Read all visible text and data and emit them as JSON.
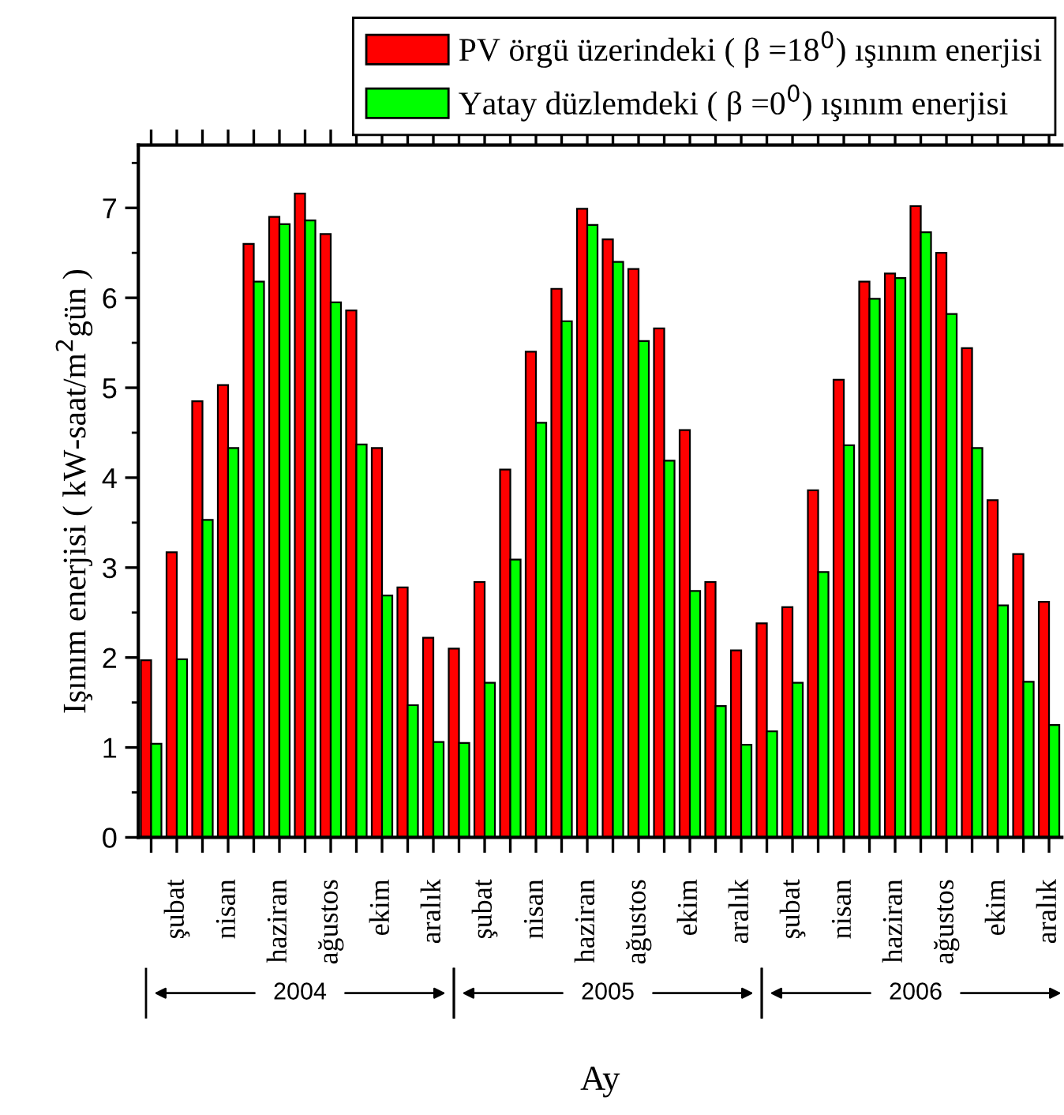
{
  "chart_data": {
    "type": "bar",
    "xlabel": "Ay",
    "ylabel": "Işınım enerjisi ( kW-saat/m$^{2}$gün )",
    "categories": [
      null,
      "şubat",
      null,
      "nisan",
      null,
      "haziran",
      null,
      "ağustos",
      null,
      "ekim",
      null,
      "aralık",
      null,
      "şubat",
      null,
      "nisan",
      null,
      "haziran",
      null,
      "ağustos",
      null,
      "ekim",
      null,
      "aralık",
      null,
      "şubat",
      null,
      "nisan",
      null,
      "haziran",
      null,
      "ağustos",
      null,
      "ekim",
      null,
      "aralık"
    ],
    "series": [
      {
        "name": "PV örgü üzerindeki ( β =18$^{0}$) ışınım enerjisi",
        "color": "#ff0000",
        "values": [
          1.97,
          3.17,
          4.85,
          5.03,
          6.6,
          6.9,
          7.16,
          6.71,
          5.86,
          4.33,
          2.78,
          2.22,
          2.1,
          2.84,
          4.09,
          5.4,
          6.1,
          6.99,
          6.65,
          6.32,
          5.66,
          4.53,
          2.84,
          2.08,
          2.38,
          2.56,
          3.86,
          5.09,
          6.18,
          6.27,
          7.02,
          6.5,
          5.44,
          3.75,
          3.15,
          2.62
        ]
      },
      {
        "name": "Yatay düzlemdeki ( β =0$^{0}$) ışınım enerjisi",
        "color": "#00ff00",
        "values": [
          1.04,
          1.98,
          3.53,
          4.33,
          6.18,
          6.82,
          6.86,
          5.95,
          4.37,
          2.69,
          1.47,
          1.06,
          1.05,
          1.72,
          3.09,
          4.61,
          5.74,
          6.81,
          6.4,
          5.52,
          4.19,
          2.74,
          1.46,
          1.03,
          1.18,
          1.72,
          2.95,
          4.36,
          5.99,
          6.22,
          6.73,
          5.82,
          4.33,
          2.58,
          1.73,
          1.25
        ]
      }
    ],
    "ylim": [
      0,
      7.7
    ],
    "yticks": [
      0,
      {
        "value": 0.5,
        "label": null
      },
      1,
      {
        "value": 1.5,
        "label": null
      },
      2,
      {
        "value": 2.5,
        "label": null
      },
      3,
      {
        "value": 3.5,
        "label": null
      },
      4,
      {
        "value": 4.5,
        "label": null
      },
      5,
      {
        "value": 5.5,
        "label": null
      },
      6,
      {
        "value": 6.5,
        "label": null
      },
      7,
      {
        "value": 7.5,
        "label": null
      }
    ],
    "annotations": [
      "2004",
      "2005",
      "2006"
    ],
    "legend": "top right",
    "grid": false
  }
}
